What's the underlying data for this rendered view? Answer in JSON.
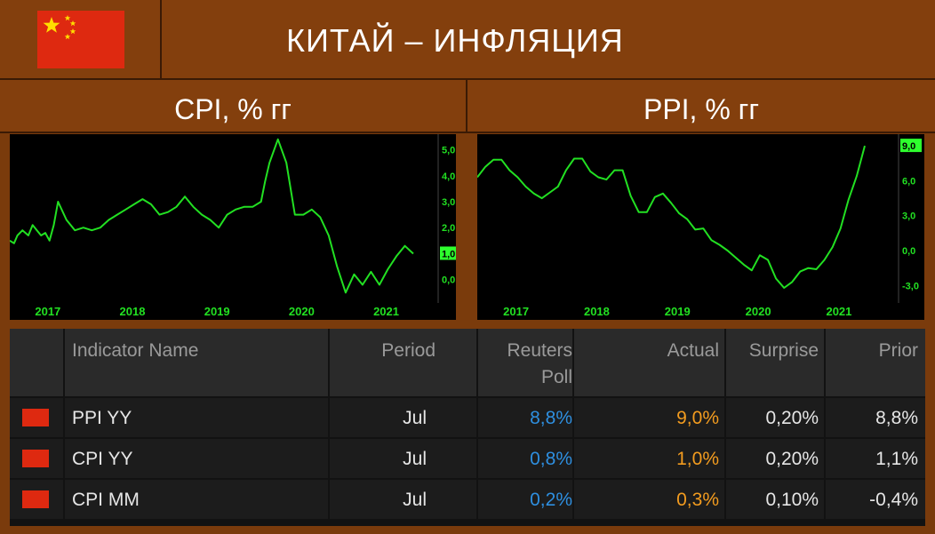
{
  "header": {
    "title": "КИТАЙ – ИНФЛЯЦИЯ",
    "flag_icon": "china-flag-icon"
  },
  "panels": {
    "cpi_title": "CPI, % гг",
    "ppi_title": "PPI, % гг"
  },
  "colors": {
    "background": "#7a3b0c",
    "line": "#22e022",
    "highlight": "#2eff2e",
    "poll": "#2e8fe0",
    "actual": "#f39c1f"
  },
  "chart_data": [
    {
      "type": "line",
      "title": "CPI, % гг",
      "xlabel": "",
      "ylabel": "",
      "x_ticks": [
        "2017",
        "2018",
        "2019",
        "2020",
        "2021"
      ],
      "y_ticks": [
        "0,0",
        "1,0",
        "2,0",
        "3,0",
        "4,0",
        "5,0"
      ],
      "ylim": [
        -0.9,
        5.6
      ],
      "y_axis_position": "right",
      "last_value_label": "1,0",
      "grid": false,
      "series": [
        {
          "x": [
            2016.63,
            2016.68,
            2016.72,
            2016.78,
            2016.85,
            2016.9,
            2016.95,
            2017.0,
            2017.05,
            2017.1,
            2017.15,
            2017.2,
            2017.3,
            2017.4,
            2017.5,
            2017.6,
            2017.7,
            2017.8,
            2017.9,
            2018.0,
            2018.1,
            2018.2,
            2018.3,
            2018.4,
            2018.5,
            2018.6,
            2018.7,
            2018.8,
            2018.9,
            2019.0,
            2019.1,
            2019.2,
            2019.3,
            2019.4,
            2019.5,
            2019.6,
            2019.65,
            2019.7,
            2019.8,
            2019.9,
            2020.0,
            2020.1,
            2020.2,
            2020.3,
            2020.4,
            2020.5,
            2020.6,
            2020.7,
            2020.8,
            2020.9,
            2021.0,
            2021.1,
            2021.2,
            2021.3,
            2021.4
          ],
          "values": [
            1.5,
            1.4,
            1.7,
            1.9,
            1.7,
            2.1,
            1.9,
            1.7,
            1.8,
            1.5,
            2.1,
            3.0,
            2.3,
            1.9,
            2.0,
            1.9,
            2.0,
            2.3,
            2.5,
            2.7,
            2.9,
            3.1,
            2.9,
            2.5,
            2.6,
            2.8,
            3.2,
            2.8,
            2.5,
            2.3,
            2.0,
            2.5,
            2.7,
            2.8,
            2.8,
            3.0,
            3.8,
            4.5,
            5.4,
            4.5,
            2.5,
            2.5,
            2.7,
            2.4,
            1.7,
            0.5,
            -0.5,
            0.2,
            -0.2,
            0.3,
            -0.2,
            0.4,
            0.9,
            1.3,
            1.0
          ]
        }
      ]
    },
    {
      "type": "line",
      "title": "PPI, % гг",
      "xlabel": "",
      "ylabel": "",
      "x_ticks": [
        "2017",
        "2018",
        "2019",
        "2020",
        "2021"
      ],
      "y_ticks": [
        "-3,0",
        "0,0",
        "3,0",
        "6,0",
        "9,0"
      ],
      "ylim": [
        -4.5,
        10.0
      ],
      "y_axis_position": "right",
      "last_value_label": "9,0",
      "grid": false,
      "series": [
        {
          "x": [
            2016.6,
            2016.7,
            2016.8,
            2016.9,
            2017.0,
            2017.1,
            2017.2,
            2017.3,
            2017.4,
            2017.5,
            2017.6,
            2017.7,
            2017.8,
            2017.9,
            2018.0,
            2018.1,
            2018.2,
            2018.3,
            2018.4,
            2018.5,
            2018.6,
            2018.7,
            2018.8,
            2018.9,
            2019.0,
            2019.1,
            2019.2,
            2019.3,
            2019.4,
            2019.5,
            2019.6,
            2019.7,
            2019.8,
            2019.9,
            2020.0,
            2020.1,
            2020.2,
            2020.3,
            2020.4,
            2020.5,
            2020.6,
            2020.7,
            2020.8,
            2020.9,
            2021.0,
            2021.1,
            2021.2,
            2021.3,
            2021.4
          ],
          "values": [
            6.3,
            7.2,
            7.8,
            7.8,
            6.9,
            6.3,
            5.5,
            4.9,
            4.5,
            5.0,
            5.5,
            6.9,
            7.9,
            7.9,
            6.8,
            6.3,
            6.1,
            6.9,
            6.9,
            4.7,
            3.3,
            3.3,
            4.6,
            4.9,
            4.1,
            3.2,
            2.7,
            1.8,
            1.9,
            0.9,
            0.5,
            0.0,
            -0.6,
            -1.2,
            -1.7,
            -0.4,
            -0.8,
            -2.4,
            -3.2,
            -2.7,
            -1.8,
            -1.5,
            -1.6,
            -0.8,
            0.3,
            1.9,
            4.4,
            6.4,
            9.0
          ]
        }
      ]
    }
  ],
  "table": {
    "headers": {
      "indicator": "Indicator Name",
      "period": "Period",
      "poll_line1": "Reuters",
      "poll_line2": "Poll",
      "actual": "Actual",
      "surprise": "Surprise",
      "prior": "Prior"
    },
    "rows": [
      {
        "indicator": "PPI YY",
        "period": "Jul",
        "poll": "8,8%",
        "actual": "9,0%",
        "surprise": "0,20%",
        "prior": "8,8%"
      },
      {
        "indicator": "CPI YY",
        "period": "Jul",
        "poll": "0,8%",
        "actual": "1,0%",
        "surprise": "0,20%",
        "prior": "1,1%"
      },
      {
        "indicator": "CPI MM",
        "period": "Jul",
        "poll": "0,2%",
        "actual": "0,3%",
        "surprise": "0,10%",
        "prior": "-0,4%"
      }
    ]
  }
}
